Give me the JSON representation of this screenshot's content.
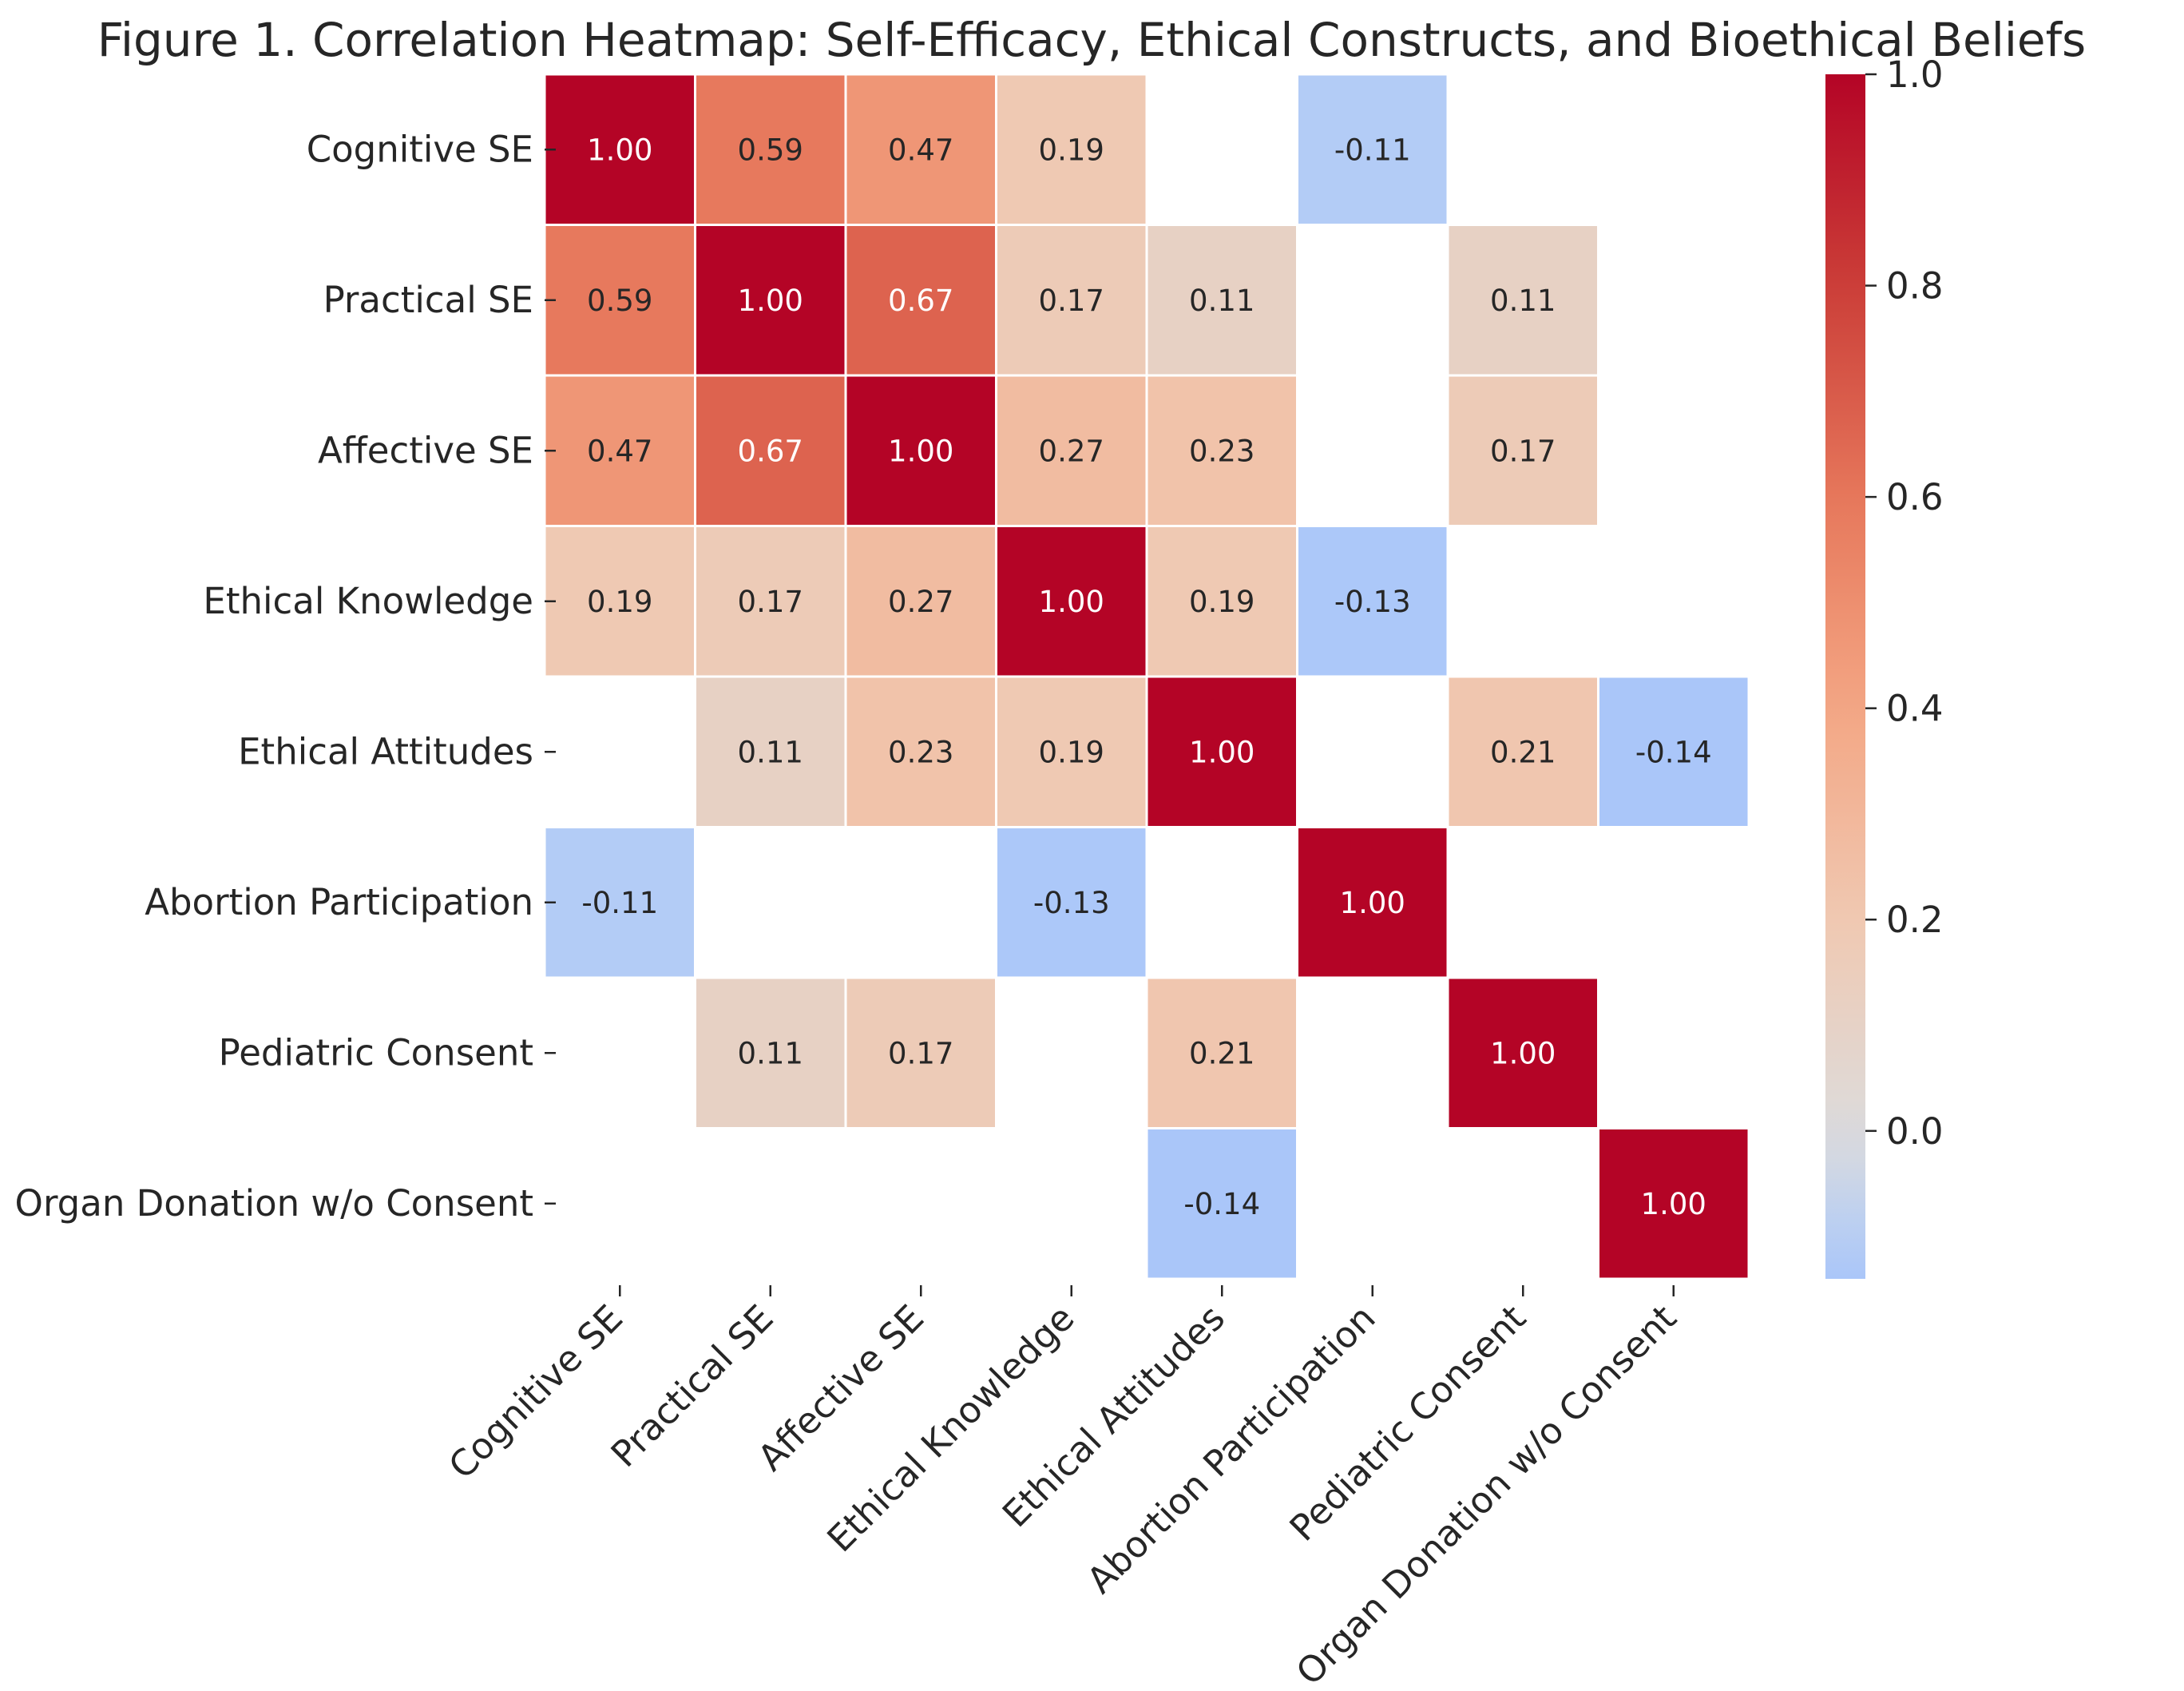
{
  "chart_data": {
    "type": "heatmap",
    "title": "Figure 1. Correlation Heatmap: Self-Efficacy, Ethical Constructs, and Bioethical Beliefs",
    "xlabel": "",
    "ylabel": "",
    "rows": [
      "Cognitive SE",
      "Practical SE",
      "Affective SE",
      "Ethical Knowledge",
      "Ethical Attitudes",
      "Abortion Participation",
      "Pediatric Consent",
      "Organ Donation w/o Consent"
    ],
    "columns": [
      "Cognitive SE",
      "Practical SE",
      "Affective SE",
      "Ethical Knowledge",
      "Ethical Attitudes",
      "Abortion Participation",
      "Pediatric Consent",
      "Organ Donation w/o Consent"
    ],
    "values": [
      [
        1.0,
        0.59,
        0.47,
        0.19,
        null,
        -0.11,
        null,
        null
      ],
      [
        0.59,
        1.0,
        0.67,
        0.17,
        0.11,
        null,
        0.11,
        null
      ],
      [
        0.47,
        0.67,
        1.0,
        0.27,
        0.23,
        null,
        0.17,
        null
      ],
      [
        0.19,
        0.17,
        0.27,
        1.0,
        0.19,
        -0.13,
        null,
        null
      ],
      [
        null,
        0.11,
        0.23,
        0.19,
        1.0,
        null,
        0.21,
        -0.14
      ],
      [
        -0.11,
        null,
        null,
        -0.13,
        null,
        1.0,
        null,
        null
      ],
      [
        null,
        0.11,
        0.17,
        null,
        0.21,
        null,
        1.0,
        null
      ],
      [
        null,
        null,
        null,
        null,
        -0.14,
        null,
        null,
        1.0
      ]
    ],
    "colormap": "coolwarm",
    "colorbar": {
      "range": [
        -0.14,
        1.0
      ],
      "ticks": [
        "0.0",
        "0.2",
        "0.4",
        "0.6",
        "0.8",
        "1.0"
      ]
    },
    "grid": false,
    "legend": "colorbar right"
  }
}
